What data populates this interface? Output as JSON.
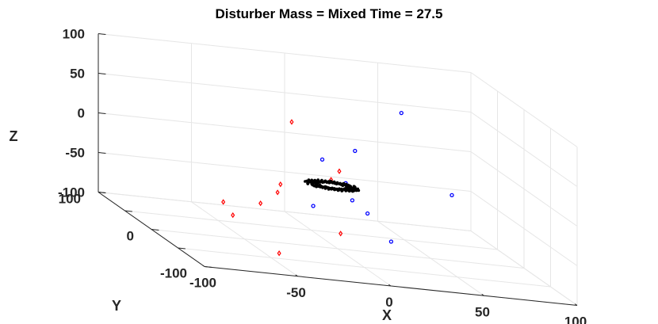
{
  "chart_data": {
    "type": "scatter",
    "title": "Disturber Mass = Mixed   Time = 27.5",
    "xlabel": "X",
    "ylabel": "Y",
    "zlabel": "Z",
    "xlim": [
      -100,
      100
    ],
    "ylim": [
      -100,
      100
    ],
    "zlim": [
      -100,
      100
    ],
    "x_ticks": [
      "-100",
      "-50",
      "0",
      "50",
      "100"
    ],
    "y_ticks": [
      "100",
      "0",
      "-100"
    ],
    "z_ticks": [
      "100",
      "50",
      "0",
      "-50",
      "-100"
    ],
    "grid": true,
    "series": [
      {
        "marker": "circle",
        "color": "#0000ff",
        "points": [
          [
            39,
            17,
            73
          ],
          [
            61,
            -1,
            -17
          ],
          [
            7,
            -8,
            29
          ],
          [
            -10,
            -6,
            13
          ],
          [
            2,
            -8,
            -13
          ],
          [
            5,
            -10,
            -33
          ],
          [
            12,
            -14,
            -46
          ],
          [
            -14,
            -3,
            -48
          ],
          [
            23,
            -20,
            -76
          ]
        ]
      },
      {
        "marker": "diamond",
        "color": "#ff0000",
        "points": [
          [
            -19,
            20,
            46
          ],
          [
            -2,
            -10,
            2
          ],
          [
            -7,
            -12,
            -9
          ],
          [
            -33,
            -8,
            -23
          ],
          [
            -30,
            8,
            -40
          ],
          [
            -42,
            -2,
            -52
          ],
          [
            -60,
            5,
            -58
          ],
          [
            -58,
            -6,
            -69
          ],
          [
            -3,
            -16,
            -74
          ],
          [
            -36,
            -16,
            -107
          ]
        ]
      },
      {
        "marker": "point",
        "color": "#000000",
        "ring": {
          "center": [
            -3,
            0,
            -21
          ],
          "radius": 14,
          "count": 140
        }
      }
    ]
  }
}
